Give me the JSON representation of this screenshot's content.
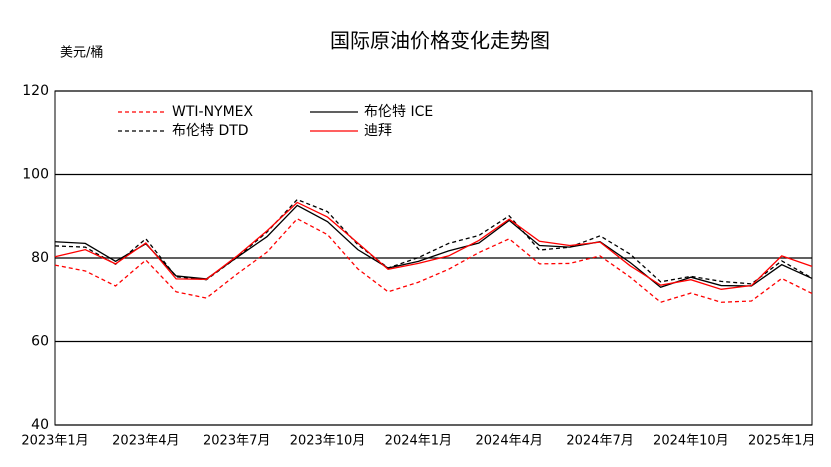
{
  "chart_data": {
    "type": "line",
    "title": "国际原油价格变化走势图",
    "y_label": "美元/桶",
    "categories": [
      "2023年1月",
      null,
      null,
      "2023年4月",
      null,
      null,
      "2023年7月",
      null,
      null,
      "2023年10月",
      null,
      null,
      "2024年1月",
      null,
      null,
      "2024年4月",
      null,
      null,
      "2024年7月",
      null,
      null,
      "2024年10月",
      null,
      null,
      "2025年1月",
      null
    ],
    "ylim": [
      40,
      120
    ],
    "yticks": [
      40,
      60,
      80,
      100,
      120
    ],
    "grid": true,
    "series": [
      {
        "name": "WTI-NYMEX",
        "color": "#ff0000",
        "dashed": true,
        "values": [
          78.3,
          76.9,
          73.3,
          79.5,
          71.9,
          70.4,
          76.1,
          81.4,
          89.4,
          85.6,
          77.4,
          71.9,
          74.2,
          77.3,
          81.3,
          84.6,
          78.6,
          78.7,
          80.5,
          75.4,
          69.4,
          71.6,
          69.4,
          69.7,
          75.1,
          71.5
        ]
      },
      {
        "name": "布伦特 ICE",
        "color": "#000000",
        "dashed": false,
        "values": [
          83.9,
          83.5,
          79.2,
          83.4,
          75.7,
          75.0,
          80.1,
          85.1,
          92.6,
          88.7,
          82.0,
          77.6,
          79.2,
          81.7,
          83.6,
          89.0,
          83.0,
          82.6,
          83.9,
          78.9,
          73.0,
          75.4,
          73.4,
          73.3,
          78.4,
          75.1
        ]
      },
      {
        "name": "布伦特 DTD",
        "color": "#000000",
        "dashed": true,
        "values": [
          82.9,
          82.6,
          78.5,
          84.6,
          75.5,
          74.8,
          80.1,
          86.2,
          94.0,
          91.1,
          83.2,
          77.6,
          80.1,
          83.5,
          85.4,
          90.1,
          81.9,
          82.6,
          85.3,
          80.9,
          74.3,
          75.6,
          74.4,
          73.8,
          79.3,
          75.2
        ]
      },
      {
        "name": "迪拜",
        "color": "#ff0000",
        "dashed": false,
        "values": [
          80.3,
          82.0,
          78.6,
          83.6,
          75.0,
          74.9,
          80.4,
          86.5,
          93.3,
          89.8,
          83.6,
          77.3,
          78.7,
          80.5,
          84.2,
          89.3,
          84.0,
          83.0,
          83.8,
          78.1,
          73.5,
          74.8,
          72.5,
          73.4,
          80.5,
          78.0
        ]
      }
    ]
  }
}
